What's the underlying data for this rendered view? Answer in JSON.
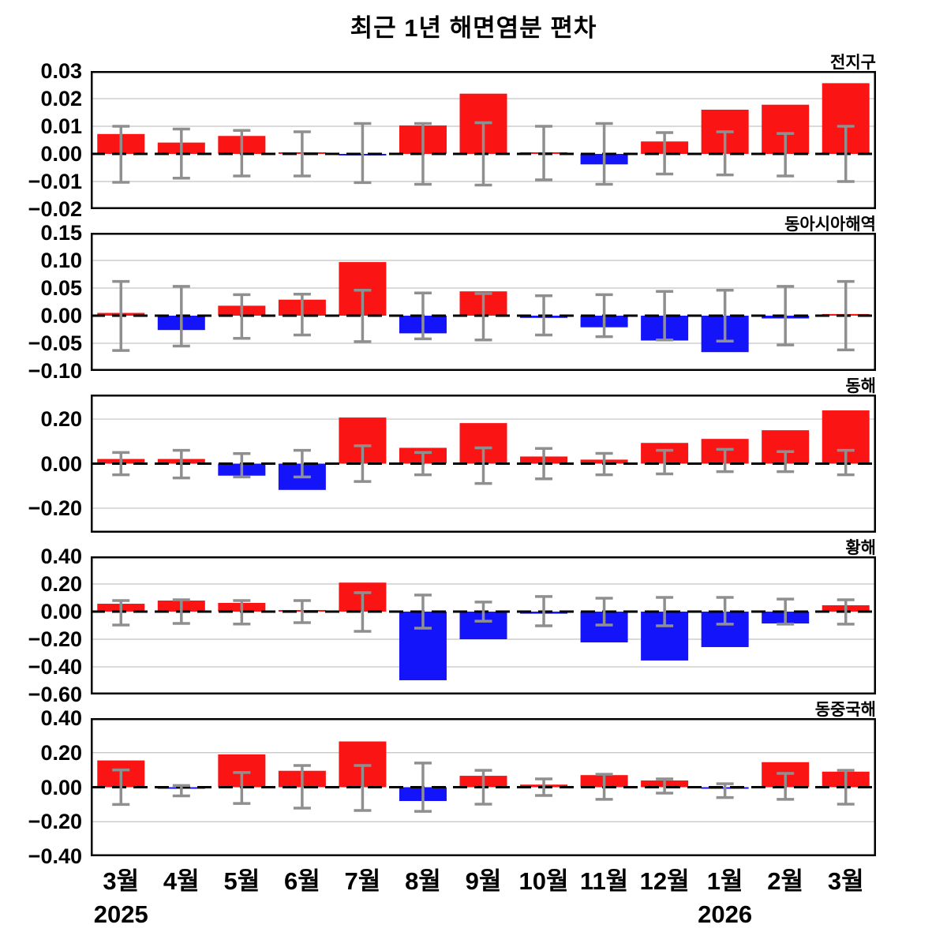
{
  "title": "최근 1년 해면염분 편차",
  "colors": {
    "positive": "#fa1414",
    "negative": "#1414fa",
    "error_bar": "#8f8f8f",
    "grid": "#c3c3c3",
    "zero_line": "#000000",
    "frame": "#000000"
  },
  "x_axis": {
    "month_labels": [
      "3월",
      "4월",
      "5월",
      "6월",
      "7월",
      "8월",
      "9월",
      "10월",
      "11월",
      "12월",
      "1월",
      "2월",
      "3월"
    ],
    "year_labels": [
      {
        "label": "2025",
        "month_index": 0
      },
      {
        "label": "2026",
        "month_index": 10
      }
    ]
  },
  "chart_data": [
    {
      "type": "bar",
      "id": "global",
      "title": "전지구",
      "categories": [
        "3월",
        "4월",
        "5월",
        "6월",
        "7월",
        "8월",
        "9월",
        "10월",
        "11월",
        "12월",
        "1월",
        "2월",
        "3월"
      ],
      "values": [
        0.0072,
        0.0041,
        0.0065,
        0.0005,
        -0.0005,
        0.0103,
        0.0218,
        0.0005,
        -0.0038,
        0.0045,
        0.016,
        0.0178,
        0.0256
      ],
      "error_high": [
        0.01,
        0.009,
        0.0085,
        0.008,
        0.011,
        0.011,
        0.0113,
        0.01,
        0.011,
        0.0077,
        0.008,
        0.0074,
        0.01
      ],
      "error_low": [
        -0.0103,
        -0.0088,
        -0.008,
        -0.008,
        -0.0104,
        -0.011,
        -0.0113,
        -0.0094,
        -0.011,
        -0.0073,
        -0.0076,
        -0.008,
        -0.01
      ],
      "ylim": [
        -0.02,
        0.03
      ],
      "yticks": [
        0.03,
        0.02,
        0.01,
        0.0,
        -0.01,
        -0.02
      ]
    },
    {
      "type": "bar",
      "id": "east-asia-seas",
      "title": "동아시아해역",
      "categories": [
        "3월",
        "4월",
        "5월",
        "6월",
        "7월",
        "8월",
        "9월",
        "10월",
        "11월",
        "12월",
        "1월",
        "2월",
        "3월"
      ],
      "values": [
        0.005,
        -0.026,
        0.018,
        0.029,
        0.097,
        -0.032,
        0.044,
        -0.004,
        -0.021,
        -0.045,
        -0.066,
        -0.005,
        0.003
      ],
      "error_high": [
        0.062,
        0.053,
        0.038,
        0.039,
        0.046,
        0.041,
        0.04,
        0.036,
        0.038,
        0.044,
        0.046,
        0.053,
        0.062
      ],
      "error_low": [
        -0.063,
        -0.055,
        -0.041,
        -0.035,
        -0.047,
        -0.042,
        -0.044,
        -0.035,
        -0.038,
        -0.044,
        -0.046,
        -0.053,
        -0.062
      ],
      "ylim": [
        -0.1,
        0.15
      ],
      "yticks": [
        0.15,
        0.1,
        0.05,
        0.0,
        -0.05,
        -0.1
      ]
    },
    {
      "type": "bar",
      "id": "east-sea",
      "title": "동해",
      "categories": [
        "3월",
        "4월",
        "5월",
        "6월",
        "7월",
        "8월",
        "9월",
        "10월",
        "11월",
        "12월",
        "1월",
        "2월",
        "3월"
      ],
      "values": [
        0.021,
        0.021,
        -0.054,
        -0.118,
        0.207,
        0.071,
        0.182,
        0.032,
        0.018,
        0.093,
        0.111,
        0.15,
        0.239
      ],
      "error_high": [
        0.05,
        0.06,
        0.045,
        0.06,
        0.08,
        0.05,
        0.071,
        0.068,
        0.046,
        0.06,
        0.064,
        0.054,
        0.06
      ],
      "error_low": [
        -0.05,
        -0.064,
        -0.06,
        -0.06,
        -0.08,
        -0.05,
        -0.089,
        -0.068,
        -0.05,
        -0.046,
        -0.036,
        -0.036,
        -0.05
      ],
      "ylim": [
        -0.31,
        0.31
      ],
      "yticks": [
        0.2,
        0.0,
        -0.2
      ]
    },
    {
      "type": "bar",
      "id": "yellow-sea",
      "title": "황해",
      "categories": [
        "3월",
        "4월",
        "5월",
        "6월",
        "7월",
        "8월",
        "9월",
        "10월",
        "11월",
        "12월",
        "1월",
        "2월",
        "3월"
      ],
      "values": [
        0.057,
        0.08,
        0.063,
        0.01,
        0.21,
        -0.497,
        -0.2,
        -0.015,
        -0.223,
        -0.354,
        -0.257,
        -0.086,
        0.046
      ],
      "error_high": [
        0.08,
        0.086,
        0.08,
        0.08,
        0.137,
        0.12,
        0.069,
        0.109,
        0.097,
        0.103,
        0.103,
        0.091,
        0.086
      ],
      "error_low": [
        -0.097,
        -0.086,
        -0.09,
        -0.08,
        -0.143,
        -0.12,
        -0.069,
        -0.103,
        -0.097,
        -0.103,
        -0.091,
        -0.091,
        -0.091
      ],
      "ylim": [
        -0.6,
        0.4
      ],
      "yticks": [
        0.4,
        0.2,
        0.0,
        -0.2,
        -0.4,
        -0.6
      ]
    },
    {
      "type": "bar",
      "id": "east-china-sea",
      "title": "동중국해",
      "categories": [
        "3월",
        "4월",
        "5월",
        "6월",
        "7월",
        "8월",
        "9월",
        "10월",
        "11월",
        "12월",
        "1월",
        "2월",
        "3월"
      ],
      "values": [
        0.155,
        -0.005,
        0.19,
        0.095,
        0.265,
        -0.08,
        0.066,
        0.015,
        0.07,
        0.039,
        -0.008,
        0.145,
        0.09
      ],
      "error_high": [
        0.1,
        0.01,
        0.085,
        0.126,
        0.126,
        0.14,
        0.098,
        0.048,
        0.075,
        0.048,
        0.02,
        0.08,
        0.098
      ],
      "error_low": [
        -0.1,
        -0.05,
        -0.094,
        -0.121,
        -0.135,
        -0.14,
        -0.098,
        -0.048,
        -0.07,
        -0.034,
        -0.06,
        -0.07,
        -0.098
      ],
      "ylim": [
        -0.4,
        0.4
      ],
      "yticks": [
        0.4,
        0.2,
        0.0,
        -0.2,
        -0.4
      ]
    }
  ]
}
